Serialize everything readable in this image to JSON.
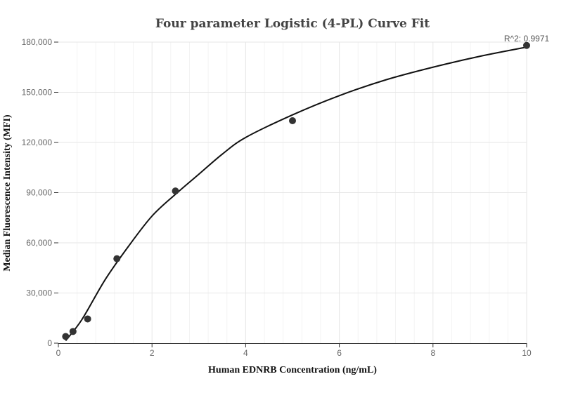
{
  "chart_data": {
    "type": "scatter",
    "title": "Four parameter Logistic (4-PL) Curve Fit",
    "xlabel": "Human EDNRB Concentration (ng/mL)",
    "ylabel": "Median Fluorescence Intensity (MFI)",
    "xlim": [
      0,
      10
    ],
    "ylim": [
      0,
      180000
    ],
    "x_ticks": [
      0,
      2,
      4,
      6,
      8,
      10
    ],
    "y_ticks": [
      0,
      30000,
      60000,
      90000,
      120000,
      150000,
      180000
    ],
    "x_tick_labels": [
      "0",
      "2",
      "4",
      "6",
      "8",
      "10"
    ],
    "y_tick_labels": [
      "0",
      "30,000",
      "60,000",
      "90,000",
      "120,000",
      "150,000",
      "180,000"
    ],
    "grid": true,
    "series": [
      {
        "points": [
          {
            "x": 0.156,
            "y": 4000
          },
          {
            "x": 0.3125,
            "y": 7000
          },
          {
            "x": 0.625,
            "y": 14500
          },
          {
            "x": 1.25,
            "y": 50500
          },
          {
            "x": 2.5,
            "y": 91000
          },
          {
            "x": 5,
            "y": 133000
          },
          {
            "x": 10,
            "y": 178000
          }
        ]
      }
    ],
    "fit_curve": {
      "points": [
        {
          "x": 0.156,
          "y": 1500
        },
        {
          "x": 0.5,
          "y": 14000
        },
        {
          "x": 1.0,
          "y": 38000
        },
        {
          "x": 1.5,
          "y": 58000
        },
        {
          "x": 2.0,
          "y": 76000
        },
        {
          "x": 2.5,
          "y": 89000
        },
        {
          "x": 3.0,
          "y": 101000
        },
        {
          "x": 3.5,
          "y": 113000
        },
        {
          "x": 4.0,
          "y": 123000
        },
        {
          "x": 5.0,
          "y": 136500
        },
        {
          "x": 6.0,
          "y": 148000
        },
        {
          "x": 7.0,
          "y": 157500
        },
        {
          "x": 8.0,
          "y": 165000
        },
        {
          "x": 9.0,
          "y": 171500
        },
        {
          "x": 10.0,
          "y": 177000
        }
      ]
    },
    "annotation": "R^2: 0.9971",
    "colors": {
      "point": "#333333",
      "curve": "#111111",
      "grid": "#e6e6e6",
      "title": "#444444"
    }
  }
}
